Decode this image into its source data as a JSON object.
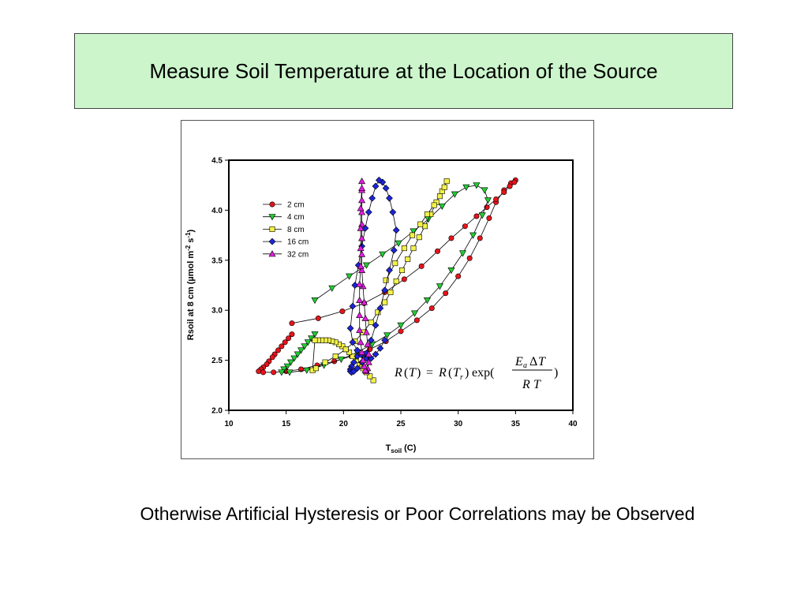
{
  "slide": {
    "title": "Measure Soil Temperature at the Location of the Source",
    "caption": "Otherwise Artificial Hysteresis or Poor Correlations may be Observed"
  },
  "chart_data": {
    "type": "scatter",
    "title": "",
    "xlabel_main": "T",
    "xlabel_sub": "soil",
    "xlabel_unit": "(C)",
    "ylabel_main": "Rsoil at 8 cm (",
    "ylabel_mu": "µ",
    "ylabel_mid": "mol m",
    "ylabel_exp1": "-2",
    "ylabel_s": " s",
    "ylabel_exp2": "-1",
    "ylabel_close": ")",
    "xlim": [
      10,
      40
    ],
    "ylim": [
      2.0,
      4.5
    ],
    "xticks": [
      "10",
      "15",
      "20",
      "25",
      "30",
      "35",
      "40"
    ],
    "yticks": [
      "2.0",
      "2.5",
      "3.0",
      "3.5",
      "4.0",
      "4.5"
    ],
    "grid": false,
    "legend_position": "top-left",
    "series": [
      {
        "name": "2 cm",
        "color": "#e8141b",
        "marker": "circle",
        "x": [
          15.5,
          15.2,
          14.9,
          14.6,
          14.3,
          14.0,
          13.8,
          13.5,
          13.3,
          13.0,
          12.8,
          12.6,
          13.0,
          13.9,
          15.0,
          16.3,
          17.7,
          19.2,
          20.7,
          22.3,
          23.7,
          25.0,
          26.4,
          27.7,
          28.9,
          30.0,
          31.0,
          31.9,
          32.7,
          33.3,
          34.0,
          34.6,
          35.0,
          34.9,
          34.5,
          34.0,
          33.3,
          32.5,
          31.6,
          30.6,
          29.4,
          28.2,
          26.8,
          25.3,
          23.6,
          21.8,
          19.9,
          17.8,
          15.5
        ],
        "y": [
          2.76,
          2.72,
          2.68,
          2.64,
          2.6,
          2.56,
          2.53,
          2.49,
          2.46,
          2.43,
          2.41,
          2.39,
          2.38,
          2.38,
          2.39,
          2.41,
          2.45,
          2.49,
          2.54,
          2.61,
          2.69,
          2.79,
          2.9,
          3.02,
          3.17,
          3.34,
          3.52,
          3.72,
          3.92,
          4.08,
          4.2,
          4.27,
          4.3,
          4.28,
          4.24,
          4.18,
          4.11,
          4.03,
          3.94,
          3.84,
          3.72,
          3.59,
          3.44,
          3.31,
          3.18,
          3.07,
          2.99,
          2.92,
          2.87
        ]
      },
      {
        "name": "4 cm",
        "color": "#22cc33",
        "marker": "triangle-down",
        "x": [
          17.5,
          17.2,
          16.9,
          16.6,
          16.3,
          16.0,
          15.7,
          15.4,
          15.1,
          14.8,
          14.6,
          15.3,
          16.8,
          18.3,
          19.8,
          21.2,
          22.5,
          23.8,
          25.0,
          26.2,
          27.3,
          28.4,
          29.4,
          30.4,
          31.3,
          32.1,
          32.6,
          32.3,
          31.6,
          30.7,
          29.7,
          28.6,
          27.4,
          26.1,
          24.8,
          23.4,
          22.0,
          20.5,
          19.0,
          17.5
        ],
        "y": [
          2.76,
          2.72,
          2.68,
          2.64,
          2.6,
          2.56,
          2.52,
          2.48,
          2.44,
          2.41,
          2.38,
          2.38,
          2.4,
          2.45,
          2.51,
          2.58,
          2.66,
          2.75,
          2.85,
          2.97,
          3.1,
          3.24,
          3.4,
          3.57,
          3.75,
          3.95,
          4.1,
          4.2,
          4.25,
          4.23,
          4.16,
          4.04,
          3.91,
          3.79,
          3.67,
          3.56,
          3.45,
          3.34,
          3.22,
          3.1
        ]
      },
      {
        "name": "8 cm",
        "color": "#f2f24a",
        "marker": "square",
        "x": [
          22.6,
          22.3,
          22.0,
          21.7,
          21.4,
          21.1,
          20.8,
          20.5,
          20.2,
          19.9,
          19.6,
          19.3,
          19.0,
          18.7,
          18.4,
          18.1,
          17.8,
          17.5,
          17.3,
          17.6,
          18.4,
          19.3,
          20.2,
          21.0,
          21.7,
          22.4,
          23.0,
          23.6,
          24.1,
          24.6,
          25.1,
          25.6,
          26.1,
          26.6,
          27.1,
          27.6,
          28.1,
          28.6,
          29.0,
          28.8,
          28.4,
          27.9,
          27.3,
          26.7,
          26.0,
          25.3,
          24.5,
          23.7
        ],
        "y": [
          2.3,
          2.34,
          2.38,
          2.42,
          2.46,
          2.5,
          2.54,
          2.58,
          2.61,
          2.64,
          2.66,
          2.68,
          2.69,
          2.7,
          2.7,
          2.7,
          2.7,
          2.7,
          2.4,
          2.42,
          2.48,
          2.54,
          2.61,
          2.69,
          2.78,
          2.88,
          2.98,
          3.08,
          3.18,
          3.29,
          3.4,
          3.51,
          3.62,
          3.73,
          3.84,
          3.96,
          4.08,
          4.19,
          4.29,
          4.23,
          4.14,
          4.05,
          3.96,
          3.86,
          3.75,
          3.62,
          3.47,
          3.3
        ]
      },
      {
        "name": "16 cm",
        "color": "#1e24d8",
        "marker": "diamond",
        "x": [
          21.2,
          20.9,
          20.7,
          20.6,
          20.6,
          20.7,
          20.9,
          21.2,
          21.6,
          22.0,
          22.4,
          22.8,
          23.2,
          23.6,
          24.0,
          24.4,
          24.6,
          24.3,
          24.0,
          23.7,
          23.4,
          23.1,
          22.8,
          22.5,
          22.2,
          21.9,
          21.6,
          21.3,
          21.0,
          20.8,
          20.6,
          20.8,
          21.2,
          21.6,
          22.0,
          22.4,
          22.8,
          23.2,
          23.6
        ],
        "y": [
          2.54,
          2.48,
          2.44,
          2.41,
          2.39,
          2.38,
          2.39,
          2.42,
          2.48,
          2.57,
          2.7,
          2.85,
          3.02,
          3.2,
          3.4,
          3.6,
          3.8,
          3.98,
          4.12,
          4.22,
          4.28,
          4.3,
          4.24,
          4.12,
          3.98,
          3.82,
          3.64,
          3.45,
          3.25,
          3.04,
          2.82,
          2.68,
          2.6,
          2.55,
          2.52,
          2.52,
          2.56,
          2.62,
          2.7
        ]
      },
      {
        "name": "32 cm",
        "color": "#e21ee0",
        "marker": "triangle-up",
        "x": [
          21.6,
          21.6,
          21.6,
          21.6,
          21.6,
          21.6,
          21.6,
          21.6,
          21.7,
          21.8,
          21.9,
          22.0,
          22.1,
          22.2,
          22.2,
          22.1,
          22.0,
          21.9,
          21.8,
          21.7,
          21.6,
          21.5,
          21.4,
          21.4,
          21.4,
          21.4,
          21.5,
          21.5,
          21.5,
          21.5,
          21.6
        ],
        "y": [
          4.29,
          4.2,
          4.1,
          3.98,
          3.86,
          3.72,
          3.56,
          3.4,
          3.24,
          3.08,
          2.92,
          2.78,
          2.66,
          2.56,
          2.48,
          2.42,
          2.39,
          2.4,
          2.44,
          2.5,
          2.58,
          2.68,
          2.8,
          2.95,
          3.1,
          3.26,
          3.44,
          3.62,
          3.82,
          4.02,
          4.22
        ]
      }
    ],
    "annotations": [
      {
        "label": "equation",
        "text": "R(T) = R(Tr) exp(EaΔT / RT)"
      }
    ]
  }
}
